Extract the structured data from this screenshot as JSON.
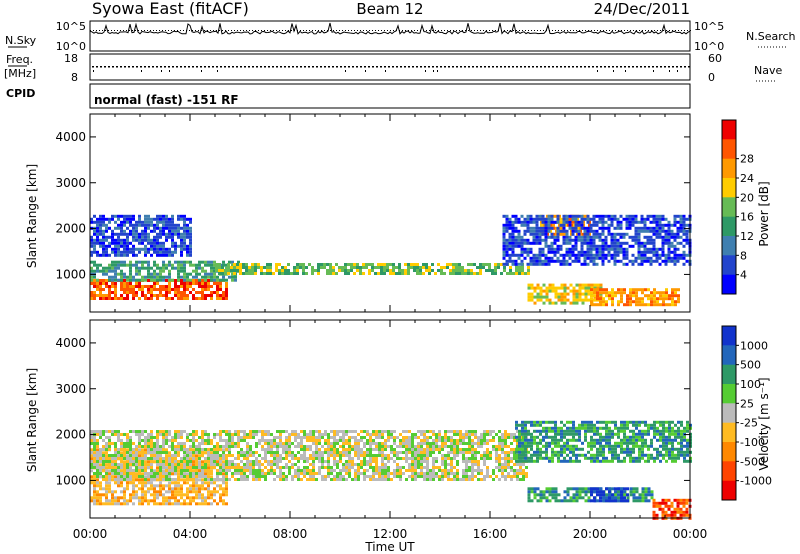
{
  "header": {
    "station": "Syowa East (fitACF)",
    "beam": "Beam 12",
    "date": "24/Dec/2011"
  },
  "nsky_panel": {
    "left_label": "N.Sky",
    "right_label": "N.Search",
    "left_ticks": [
      "10^5",
      "10^0"
    ],
    "right_ticks": [
      "10^5",
      "10^0"
    ]
  },
  "freq_panel": {
    "left_label_1": "Freq.",
    "left_label_2": "[MHz]",
    "right_label": "Nave",
    "left_ticks": [
      "18",
      "8"
    ],
    "right_ticks": [
      "60",
      "0"
    ]
  },
  "cpid_panel": {
    "label": "CPID",
    "mode": "normal (fast) -151 RF"
  },
  "chart_data": [
    {
      "type": "heatmap",
      "panel": "power",
      "ylabel": "Slant Range [km]",
      "xlabel": "Time UT",
      "ylim": [
        180,
        4500
      ],
      "y_ticks": [
        1000,
        2000,
        3000,
        4000
      ],
      "x_ticks": [
        "00:00",
        "04:00",
        "08:00",
        "12:00",
        "16:00",
        "20:00",
        "00:00"
      ],
      "x_hours": [
        0,
        24
      ],
      "colorbar": {
        "label": "Power [dB]",
        "ticks": [
          "4",
          "8",
          "12",
          "16",
          "20",
          "24",
          "28"
        ],
        "colors": [
          "#0000ff",
          "#2244cc",
          "#3f7fb0",
          "#2e9966",
          "#66bb55",
          "#ffcc00",
          "#ff9900",
          "#ff5500",
          "#ee0000"
        ]
      },
      "bands": [
        {
          "t0": 0.0,
          "t1": 5.5,
          "r0": 450,
          "r1": 900,
          "level": 7
        },
        {
          "t0": 0.0,
          "t1": 6.0,
          "r0": 900,
          "r1": 1300,
          "level": 3
        },
        {
          "t0": 0.0,
          "t1": 4.0,
          "r0": 1400,
          "r1": 2300,
          "level": 1
        },
        {
          "t0": 5.0,
          "t1": 17.5,
          "r0": 1050,
          "r1": 1250,
          "level": 4
        },
        {
          "t0": 17.5,
          "t1": 20.5,
          "r0": 400,
          "r1": 800,
          "level": 5
        },
        {
          "t0": 18.0,
          "t1": 20.0,
          "r0": 1900,
          "r1": 2300,
          "level": 6
        },
        {
          "t0": 16.5,
          "t1": 24.0,
          "r0": 1200,
          "r1": 2300,
          "level": 1
        },
        {
          "t0": 20.0,
          "t1": 23.5,
          "r0": 350,
          "r1": 700,
          "level": 6
        }
      ]
    },
    {
      "type": "heatmap",
      "panel": "velocity",
      "ylabel": "Slant Range [km]",
      "xlabel": "Time UT",
      "ylim": [
        180,
        4500
      ],
      "y_ticks": [
        1000,
        2000,
        3000,
        4000
      ],
      "x_ticks": [
        "00:00",
        "04:00",
        "08:00",
        "12:00",
        "16:00",
        "20:00",
        "00:00"
      ],
      "x_hours": [
        0,
        24
      ],
      "colorbar": {
        "label": "Velocity [m s⁻¹]",
        "ticks": [
          "1000",
          "500",
          "100",
          "25",
          "-25",
          "-100",
          "-500",
          "-1000"
        ],
        "colors": [
          "#1133cc",
          "#2266bb",
          "#2e9966",
          "#55cc33",
          "#bbbbbb",
          "#ffbb22",
          "#ff8800",
          "#ff4400",
          "#ee0000"
        ]
      },
      "bands": [
        {
          "t0": 0.0,
          "t1": 5.5,
          "r0": 500,
          "r1": 1700,
          "level": 5
        },
        {
          "t0": 0.0,
          "t1": 17.5,
          "r0": 1000,
          "r1": 2100,
          "level": 4
        },
        {
          "t0": 17.5,
          "t1": 22.5,
          "r0": 550,
          "r1": 850,
          "level": 2
        },
        {
          "t0": 20.0,
          "t1": 21.5,
          "r0": 550,
          "r1": 850,
          "level": 0
        },
        {
          "t0": 17.0,
          "t1": 24.0,
          "r0": 1400,
          "r1": 2300,
          "level": 2
        },
        {
          "t0": 22.5,
          "t1": 24.0,
          "r0": 200,
          "r1": 600,
          "level": 7
        }
      ]
    }
  ]
}
